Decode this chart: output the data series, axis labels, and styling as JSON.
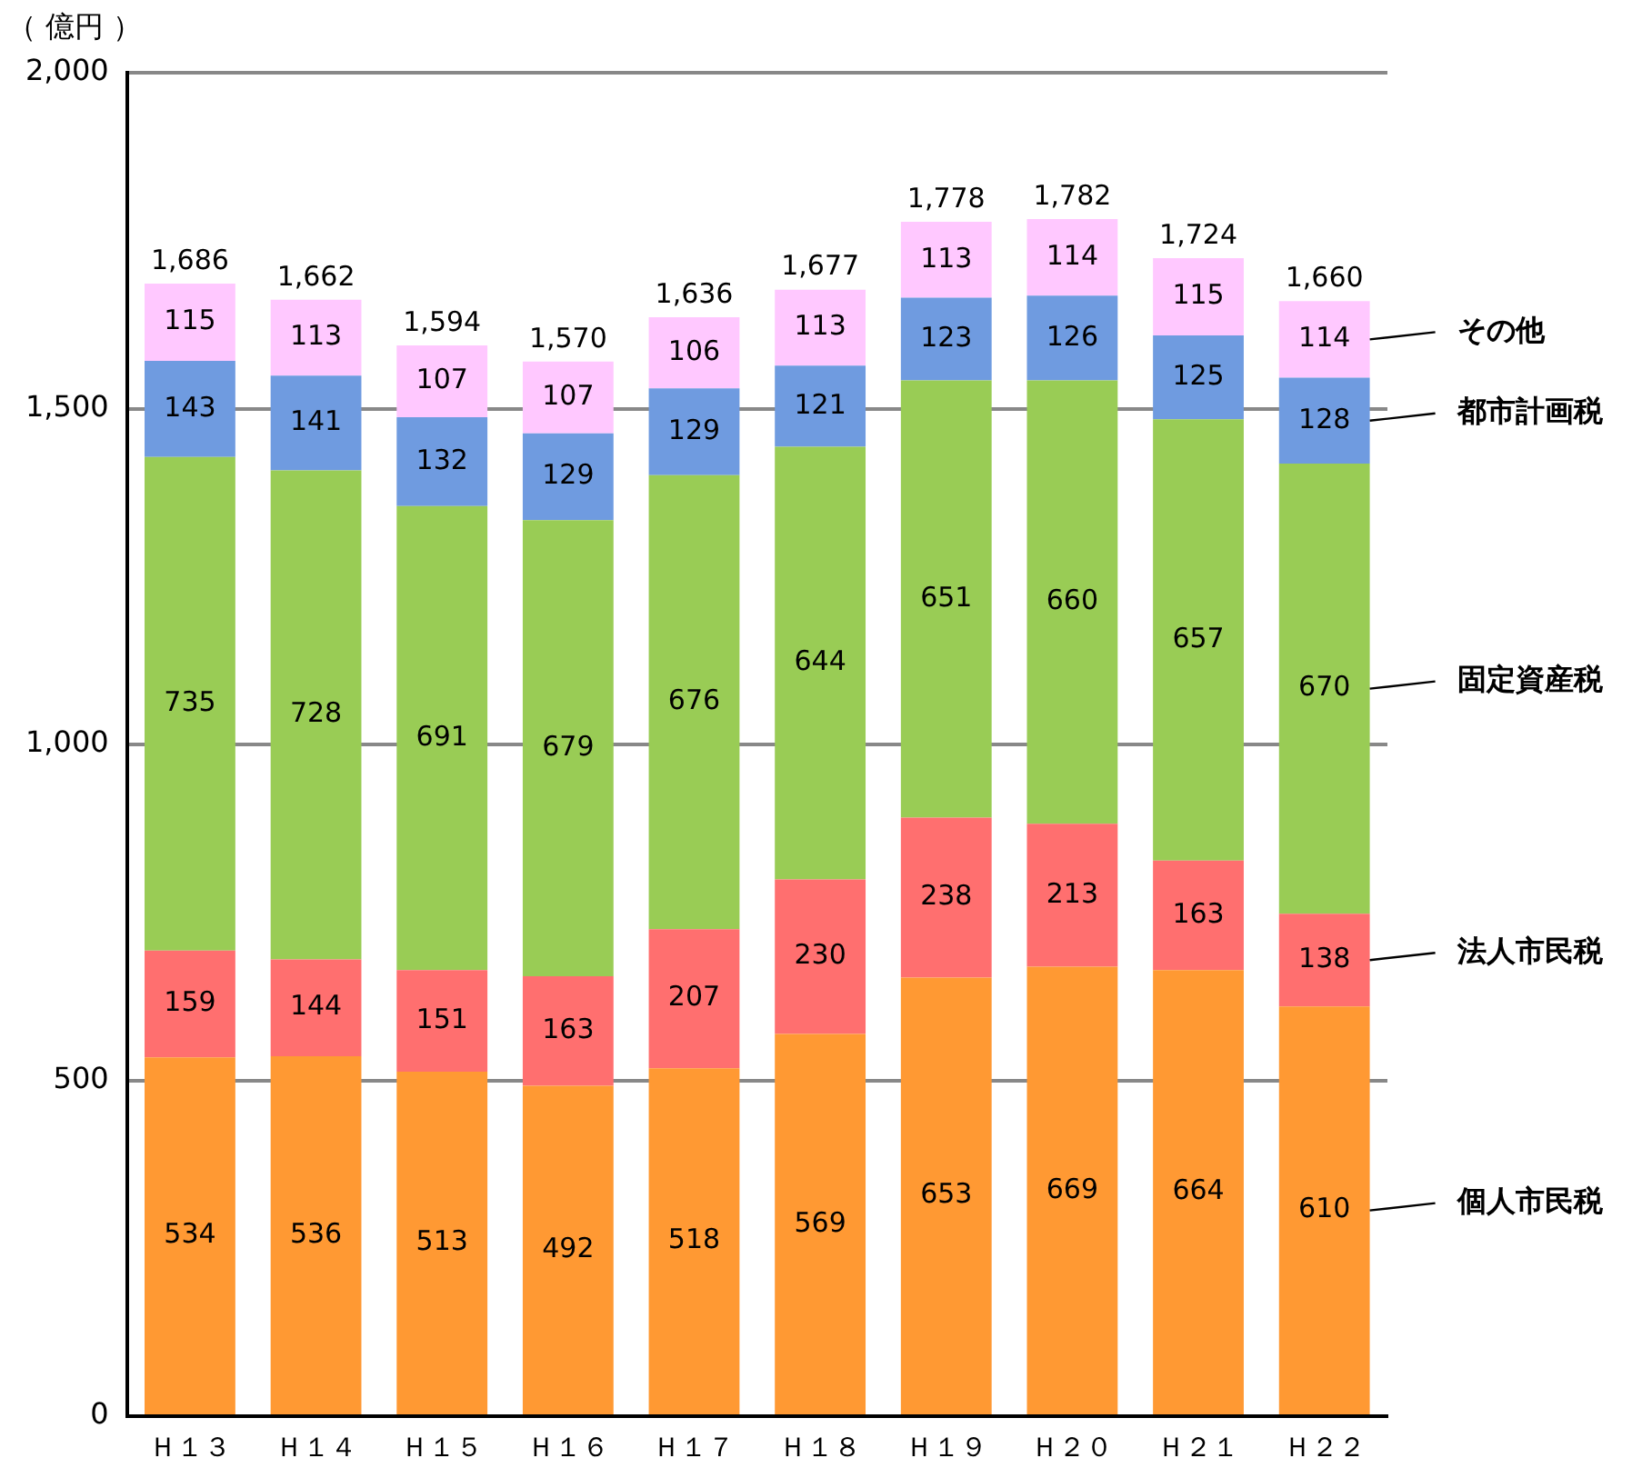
{
  "chart_data": {
    "type": "bar",
    "stacked": true,
    "ylabel": "（ 億円 ）",
    "categories": [
      "Ｈ１３",
      "Ｈ１４",
      "Ｈ１５",
      "Ｈ１６",
      "Ｈ１７",
      "Ｈ１８",
      "Ｈ１９",
      "Ｈ２０",
      "Ｈ２１",
      "Ｈ２２"
    ],
    "series": [
      {
        "name": "個人市民税",
        "color": "#ff9933",
        "values": [
          534,
          536,
          513,
          492,
          518,
          569,
          653,
          669,
          664,
          610
        ]
      },
      {
        "name": "法人市民税",
        "color": "#ff6f6f",
        "values": [
          159,
          144,
          151,
          163,
          207,
          230,
          238,
          213,
          163,
          138
        ]
      },
      {
        "name": "固定資産税",
        "color": "#99cc55",
        "values": [
          735,
          728,
          691,
          679,
          676,
          644,
          651,
          660,
          657,
          670
        ]
      },
      {
        "name": "都市計画税",
        "color": "#6f9be0",
        "values": [
          143,
          141,
          132,
          129,
          129,
          121,
          123,
          126,
          125,
          128
        ]
      },
      {
        "name": "その他",
        "color": "#ffc8ff",
        "values": [
          115,
          113,
          107,
          107,
          106,
          113,
          113,
          114,
          115,
          114
        ]
      }
    ],
    "totals": [
      "1,686",
      "1,662",
      "1,594",
      "1,570",
      "1,636",
      "1,677",
      "1,778",
      "1,782",
      "1,724",
      "1,660"
    ],
    "data_labels": true,
    "ylim": [
      0,
      2000
    ],
    "yticks": [
      0,
      500,
      {
        "value": 1000,
        "label": "1,000"
      },
      {
        "value": 1500,
        "label": "1,500"
      },
      {
        "value": 2000,
        "label": "2,000"
      }
    ],
    "grid": "y",
    "legend": false
  }
}
